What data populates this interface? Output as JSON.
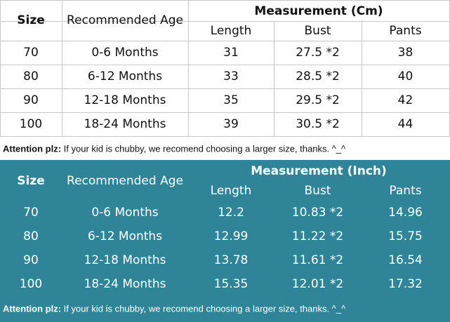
{
  "tables": [
    {
      "header": {
        "size": "Size",
        "age": "Recommended Age",
        "measurement": "Measurement (Cm)",
        "columns": [
          "Length",
          "Bust",
          "Pants"
        ]
      },
      "rows": [
        [
          "70",
          "0-6 Months",
          "31",
          "27.5 *2",
          "38"
        ],
        [
          "80",
          "6-12 Months",
          "33",
          "28.5 *2",
          "40"
        ],
        [
          "90",
          "12-18 Months",
          "35",
          "29.5 *2",
          "42"
        ],
        [
          "100",
          "18-24 Months",
          "39",
          "30.5 *2",
          "44"
        ]
      ],
      "note": {
        "label": "Attention plz:",
        "text": "If your kid is chubby, we recomend choosing a larger size, thanks. ^_^"
      }
    },
    {
      "header": {
        "size": "Size",
        "age": "Recommended Age",
        "measurement": "Measurement (Inch)",
        "columns": [
          "Length",
          "Bust",
          "Pants"
        ]
      },
      "rows": [
        [
          "70",
          "0-6 Months",
          "12.2",
          "10.83 *2",
          "14.96"
        ],
        [
          "80",
          "6-12 Months",
          "12.99",
          "11.22 *2",
          "15.75"
        ],
        [
          "90",
          "12-18 Months",
          "13.78",
          "11.61 *2",
          "16.54"
        ],
        [
          "100",
          "18-24 Months",
          "15.35",
          "12.01 *2",
          "17.32"
        ]
      ],
      "note": {
        "label": "Attention plz:",
        "text": "If your kid is chubby, we recomend choosing a larger size, thanks. ^_^"
      }
    }
  ]
}
